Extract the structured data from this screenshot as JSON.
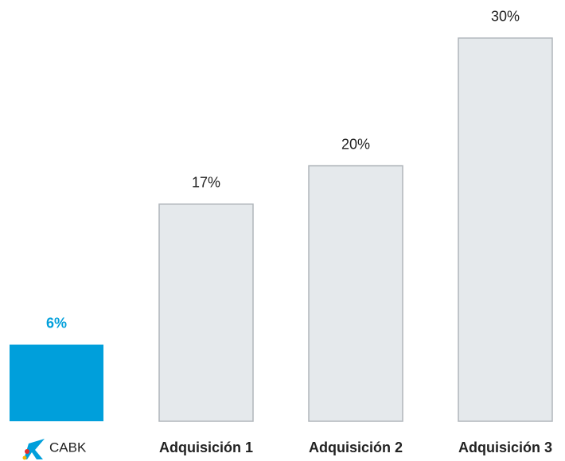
{
  "chart_data": {
    "type": "bar",
    "categories": [
      "CABK",
      "Adquisición 1",
      "Adquisición 2",
      "Adquisición 3"
    ],
    "values": [
      6,
      17,
      20,
      30
    ],
    "value_labels": [
      "6%",
      "17%",
      "20%",
      "30%"
    ],
    "colors": [
      "#009fdb",
      "#e5e9ec",
      "#e5e9ec",
      "#e5e9ec"
    ]
  }
}
